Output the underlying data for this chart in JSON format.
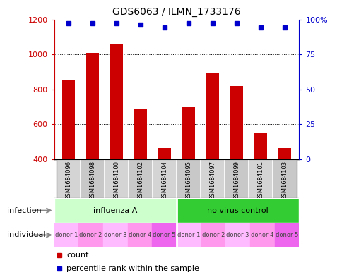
{
  "title": "GDS6063 / ILMN_1733176",
  "samples": [
    "GSM1684096",
    "GSM1684098",
    "GSM1684100",
    "GSM1684102",
    "GSM1684104",
    "GSM1684095",
    "GSM1684097",
    "GSM1684099",
    "GSM1684101",
    "GSM1684103"
  ],
  "counts": [
    855,
    1010,
    1055,
    685,
    465,
    700,
    890,
    820,
    555,
    465
  ],
  "percentiles": [
    97,
    97,
    97,
    96,
    94,
    97,
    97,
    97,
    94,
    94
  ],
  "ylim_left": [
    400,
    1200
  ],
  "ylim_right": [
    0,
    100
  ],
  "yticks_left": [
    400,
    600,
    800,
    1000,
    1200
  ],
  "yticks_right": [
    0,
    25,
    50,
    75,
    100
  ],
  "bar_color": "#cc0000",
  "dot_color": "#0000cc",
  "infection_groups": [
    {
      "label": "influenza A",
      "start": 0,
      "end": 5,
      "color": "#ccffcc"
    },
    {
      "label": "no virus control",
      "start": 5,
      "end": 10,
      "color": "#33cc33"
    }
  ],
  "individual_labels": [
    "donor 1",
    "donor 2",
    "donor 3",
    "donor 4",
    "donor 5",
    "donor 1",
    "donor 2",
    "donor 3",
    "donor 4",
    "donor 5"
  ],
  "individual_colors": [
    "#ffbbff",
    "#ff99ee",
    "#ffbbff",
    "#ff99ee",
    "#ee66ee",
    "#ffbbff",
    "#ff99ee",
    "#ffbbff",
    "#ff99ee",
    "#ee66ee"
  ],
  "sample_bg_colors": [
    "#d4d4d4",
    "#c8c8c8",
    "#d4d4d4",
    "#c8c8c8",
    "#d4d4d4",
    "#c8c8c8",
    "#d4d4d4",
    "#c8c8c8",
    "#d4d4d4",
    "#c8c8c8"
  ],
  "left_axis_color": "#cc0000",
  "right_axis_color": "#0000cc",
  "grid_lines": [
    600,
    800,
    1000
  ],
  "legend_count_label": "count",
  "legend_pct_label": "percentile rank within the sample",
  "infection_row_label": "infection",
  "individual_row_label": "individual",
  "arrow_color": "#888888"
}
